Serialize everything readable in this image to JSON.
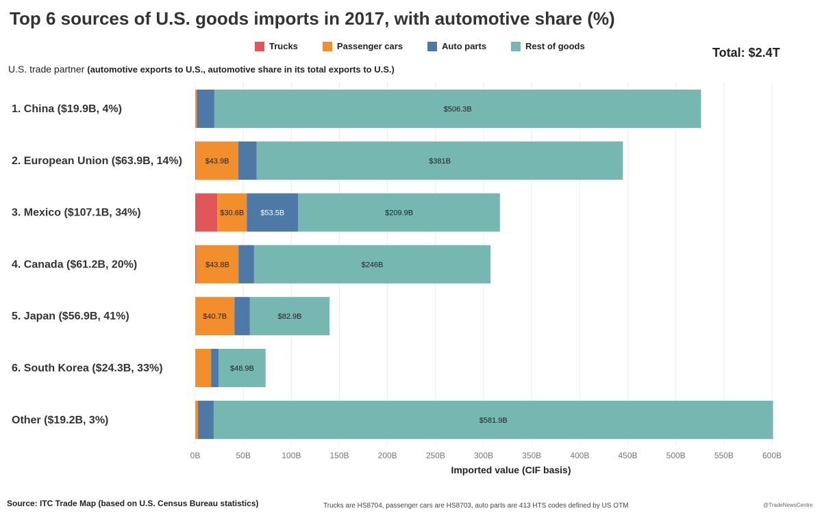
{
  "chart_data": {
    "type": "bar",
    "orientation": "horizontal",
    "stacked": true,
    "title": "Top 6 sources of U.S. goods imports in 2017, with automotive share (%)",
    "total_label": "Total: $2.4T",
    "y_header": "U.S. trade partner",
    "y_header_note": "(automotive exports to U.S., automotive share in its total exports to U.S.)",
    "xlabel": "Imported value (CIF basis)",
    "xlim": [
      0,
      600
    ],
    "xticks": [
      0,
      50,
      100,
      150,
      200,
      250,
      300,
      350,
      400,
      450,
      500,
      550,
      600
    ],
    "xtick_labels": [
      "0B",
      "50B",
      "100B",
      "150B",
      "200B",
      "250B",
      "300B",
      "350B",
      "400B",
      "450B",
      "500B",
      "550B",
      "600B"
    ],
    "legend": [
      {
        "name": "Trucks",
        "color": "#e15759"
      },
      {
        "name": "Passenger cars",
        "color": "#f28e2b"
      },
      {
        "name": "Auto parts",
        "color": "#4e79a7"
      },
      {
        "name": "Rest of goods",
        "color": "#76b7b2"
      }
    ],
    "categories": [
      "1. China ($19.9B, 4%)",
      "2. European Union ($63.9B, 14%)",
      "3. Mexico ($107.1B, 34%)",
      "4. Canada ($61.2B, 20%)",
      "5. Japan ($56.9B, 41%)",
      "6. South Korea ($24.3B, 33%)",
      "Other ($19.2B, 3%)"
    ],
    "series": [
      {
        "name": "Trucks",
        "values": [
          0.1,
          0.9,
          23.0,
          1.2,
          0.1,
          0.1,
          0.2
        ]
      },
      {
        "name": "Passenger cars",
        "values": [
          1.5,
          43.9,
          30.6,
          43.8,
          40.7,
          16.4,
          2.6
        ]
      },
      {
        "name": "Auto parts",
        "values": [
          18.3,
          19.1,
          53.5,
          16.2,
          16.1,
          7.8,
          16.4
        ]
      },
      {
        "name": "Rest of goods",
        "values": [
          506.3,
          381.0,
          209.9,
          246.0,
          82.9,
          48.9,
          581.9
        ]
      }
    ],
    "data_labels": [
      [
        null,
        null,
        null,
        "$506.3B"
      ],
      [
        null,
        "$43.9B",
        null,
        "$381B"
      ],
      [
        null,
        "$30.6B",
        "$53.5B",
        "$209.9B"
      ],
      [
        null,
        "$43.8B",
        null,
        "$246B"
      ],
      [
        null,
        "$40.7B",
        null,
        "$82.9B"
      ],
      [
        null,
        null,
        null,
        "$48.9B"
      ],
      [
        null,
        null,
        null,
        "$581.9B"
      ]
    ],
    "grid": true
  },
  "footer": {
    "source": "Source: ITC Trade Map (based on U.S. Census Bureau statistics)",
    "note": "Trucks are HS8704, passenger cars are HS8703, auto parts are 413 HTS codes defined by US OTM",
    "credit": "@TradeNewsCentre"
  }
}
